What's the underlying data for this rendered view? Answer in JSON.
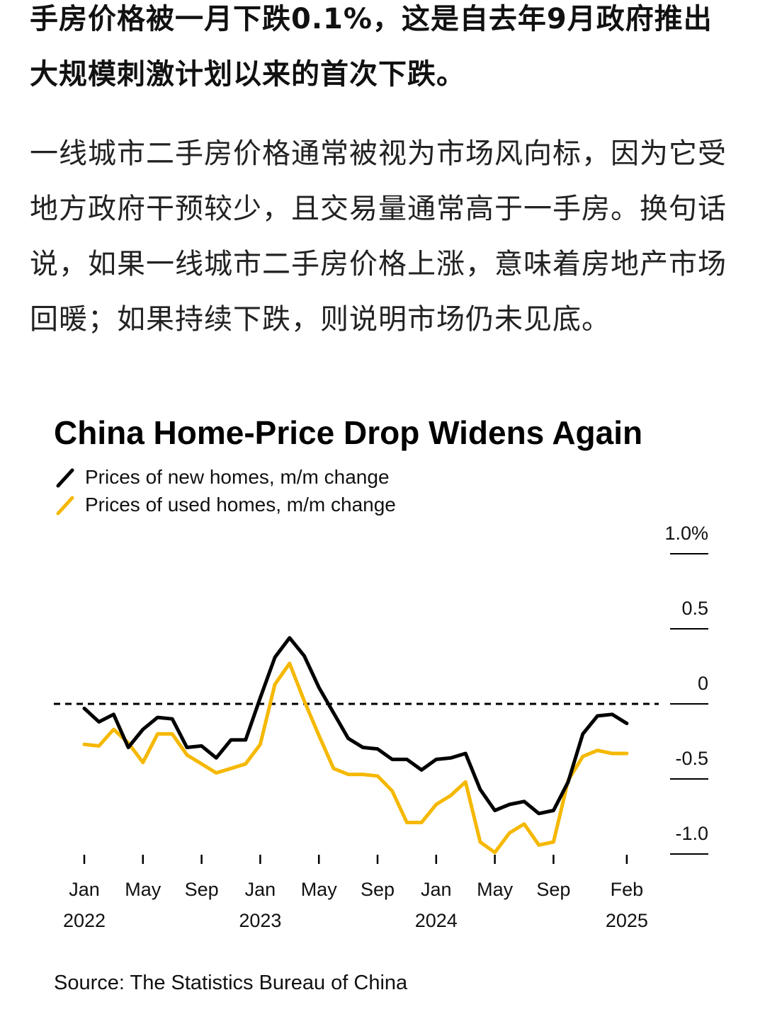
{
  "article": {
    "paragraph_1": "手房价格被一月下跌0.1%，这是自去年9月政府推出大规模刺激计划以来的首次下跌。",
    "paragraph_2": "一线城市二手房价格通常被视为市场风向标，因为它受地方政府干预较少，且交易量通常高于一手房。换句话说，如果一线城市二手房价格上涨，意味着房地产市场回暖；如果持续下跌，则说明市场仍未见底。"
  },
  "colors": {
    "new_homes": "#000000",
    "used_homes": "#f5b800",
    "zero_line": "#000000",
    "grid": "#000000"
  },
  "chart_data": {
    "type": "line",
    "title": "China Home-Price Drop Widens Again",
    "source": "Source: The Statistics Bureau of China",
    "legend_position": "top-left",
    "grid": false,
    "y_axis": {
      "position": "right",
      "range": [
        -1.1,
        1.0
      ],
      "ticks": [
        {
          "value": 1.0,
          "label": "1.0%"
        },
        {
          "value": 0.5,
          "label": "0.5"
        },
        {
          "value": 0,
          "label": "0"
        },
        {
          "value": -0.5,
          "label": "-0.5"
        },
        {
          "value": -1.0,
          "label": "-1.0"
        }
      ]
    },
    "x_axis": {
      "start": "2022-01",
      "end": "2025-02",
      "ticks": [
        {
          "month": "2022-01",
          "label": "Jan",
          "year": "2022"
        },
        {
          "month": "2022-05",
          "label": "May",
          "year": ""
        },
        {
          "month": "2022-09",
          "label": "Sep",
          "year": ""
        },
        {
          "month": "2023-01",
          "label": "Jan",
          "year": "2023"
        },
        {
          "month": "2023-05",
          "label": "May",
          "year": ""
        },
        {
          "month": "2023-09",
          "label": "Sep",
          "year": ""
        },
        {
          "month": "2024-01",
          "label": "Jan",
          "year": "2024"
        },
        {
          "month": "2024-05",
          "label": "May",
          "year": ""
        },
        {
          "month": "2024-09",
          "label": "Sep",
          "year": ""
        },
        {
          "month": "2025-02",
          "label": "Feb",
          "year": "2025"
        }
      ]
    },
    "months": [
      "2022-01",
      "2022-02",
      "2022-03",
      "2022-04",
      "2022-05",
      "2022-06",
      "2022-07",
      "2022-08",
      "2022-09",
      "2022-10",
      "2022-11",
      "2022-12",
      "2023-01",
      "2023-02",
      "2023-03",
      "2023-04",
      "2023-05",
      "2023-06",
      "2023-07",
      "2023-08",
      "2023-09",
      "2023-10",
      "2023-11",
      "2023-12",
      "2024-01",
      "2024-02",
      "2024-03",
      "2024-04",
      "2024-05",
      "2024-06",
      "2024-07",
      "2024-08",
      "2024-09",
      "2024-10",
      "2024-11",
      "2024-12",
      "2025-01",
      "2025-02"
    ],
    "series": [
      {
        "name": "Prices of new homes, m/m change",
        "values": [
          -0.03,
          -0.12,
          -0.07,
          -0.29,
          -0.17,
          -0.09,
          -0.1,
          -0.29,
          -0.28,
          -0.36,
          -0.24,
          -0.24,
          0.04,
          0.31,
          0.44,
          0.32,
          0.11,
          -0.06,
          -0.23,
          -0.29,
          -0.3,
          -0.37,
          -0.37,
          -0.44,
          -0.37,
          -0.36,
          -0.33,
          -0.57,
          -0.71,
          -0.67,
          -0.65,
          -0.73,
          -0.71,
          -0.52,
          -0.2,
          -0.08,
          -0.07,
          -0.13
        ]
      },
      {
        "name": "Prices of used homes, m/m change",
        "values": [
          -0.27,
          -0.28,
          -0.17,
          -0.26,
          -0.39,
          -0.2,
          -0.2,
          -0.34,
          -0.4,
          -0.46,
          -0.43,
          -0.4,
          -0.27,
          0.13,
          0.27,
          0.02,
          -0.21,
          -0.43,
          -0.47,
          -0.47,
          -0.48,
          -0.58,
          -0.79,
          -0.79,
          -0.67,
          -0.61,
          -0.52,
          -0.92,
          -0.99,
          -0.86,
          -0.8,
          -0.94,
          -0.92,
          -0.51,
          -0.35,
          -0.31,
          -0.33,
          -0.33
        ]
      }
    ]
  }
}
